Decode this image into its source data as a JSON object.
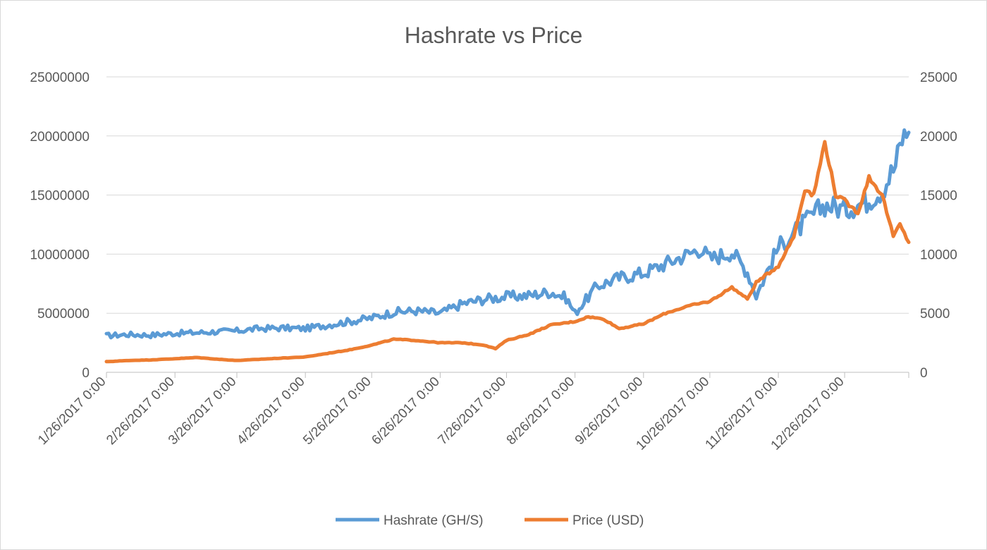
{
  "chart_data": {
    "type": "line",
    "title": "Hashrate vs Price",
    "xlabel": "",
    "ylabel": "",
    "y2label": "",
    "ylim": [
      0,
      25000000
    ],
    "y2lim": [
      0,
      25000
    ],
    "y_ticks": [
      "0",
      "5000000",
      "10000000",
      "15000000",
      "20000000",
      "25000000"
    ],
    "y2_ticks": [
      "0",
      "5000",
      "10000",
      "15000",
      "20000",
      "25000"
    ],
    "x_ticks": [
      "1/26/2017 0:00",
      "2/26/2017 0:00",
      "3/26/2017 0:00",
      "4/26/2017 0:00",
      "5/26/2017 0:00",
      "6/26/2017 0:00",
      "7/26/2017 0:00",
      "8/26/2017 0:00",
      "9/26/2017 0:00",
      "10/26/2017 0:00",
      "11/26/2017 0:00",
      "12/26/2017 0:00"
    ],
    "x_range": [
      "1/26/2017",
      "1/24/2018"
    ],
    "grid": true,
    "legend": "bottom",
    "series": [
      {
        "name": "Hashrate (GH/S)",
        "axis": "left",
        "color": "#5b9bd5",
        "x": [
          "1/26/2017",
          "2/5/2017",
          "2/15/2017",
          "2/26/2017",
          "3/8/2017",
          "3/18/2017",
          "3/26/2017",
          "4/5/2017",
          "4/15/2017",
          "4/26/2017",
          "5/6/2017",
          "5/16/2017",
          "5/26/2017",
          "6/5/2017",
          "6/15/2017",
          "6/26/2017",
          "7/6/2017",
          "7/16/2017",
          "7/26/2017",
          "8/5/2017",
          "8/15/2017",
          "8/22/2017",
          "8/26/2017",
          "9/5/2017",
          "9/15/2017",
          "9/26/2017",
          "10/6/2017",
          "10/16/2017",
          "10/22/2017",
          "10/26/2017",
          "11/5/2017",
          "11/12/2017",
          "11/16/2017",
          "11/26/2017",
          "12/3/2017",
          "12/10/2017",
          "12/17/2017",
          "12/26/2017",
          "1/5/2018",
          "1/12/2018",
          "1/18/2018",
          "1/21/2018",
          "1/24/2018"
        ],
        "values": [
          3100000,
          3200000,
          3150000,
          3300000,
          3350000,
          3450000,
          3500000,
          3700000,
          3750000,
          3700000,
          4000000,
          4300000,
          4600000,
          5100000,
          5200000,
          5000000,
          5800000,
          6200000,
          6400000,
          6500000,
          6800000,
          6300000,
          5000000,
          7300000,
          8000000,
          8400000,
          9200000,
          10000000,
          10500000,
          9600000,
          10200000,
          8500000,
          6500000,
          10600000,
          11800000,
          13000000,
          14200000,
          13800000,
          14500000,
          15500000,
          17500000,
          19800000,
          20300000
        ]
      },
      {
        "name": "Price (USD)",
        "axis": "right",
        "color": "#ed7d31",
        "x": [
          "1/26/2017",
          "2/5/2017",
          "2/15/2017",
          "2/26/2017",
          "3/8/2017",
          "3/18/2017",
          "3/26/2017",
          "4/5/2017",
          "4/15/2017",
          "4/26/2017",
          "5/6/2017",
          "5/16/2017",
          "5/26/2017",
          "6/5/2017",
          "6/15/2017",
          "6/26/2017",
          "7/6/2017",
          "7/16/2017",
          "7/21/2017",
          "7/26/2017",
          "8/5/2017",
          "8/15/2017",
          "8/26/2017",
          "9/1/2017",
          "9/8/2017",
          "9/15/2017",
          "9/26/2017",
          "10/6/2017",
          "10/16/2017",
          "10/26/2017",
          "11/5/2017",
          "11/12/2017",
          "11/16/2017",
          "11/26/2017",
          "12/3/2017",
          "12/8/2017",
          "12/12/2017",
          "12/17/2017",
          "12/22/2017",
          "12/26/2017",
          "1/1/2018",
          "1/6/2018",
          "1/12/2018",
          "1/17/2018",
          "1/20/2018",
          "1/24/2018"
        ],
        "values": [
          900,
          1000,
          1050,
          1150,
          1250,
          1100,
          1000,
          1100,
          1200,
          1300,
          1600,
          1900,
          2300,
          2800,
          2700,
          2500,
          2500,
          2300,
          2000,
          2700,
          3200,
          4000,
          4300,
          4700,
          4500,
          3700,
          4100,
          5000,
          5600,
          6000,
          7200,
          6200,
          7600,
          9000,
          11500,
          15500,
          15000,
          19500,
          15000,
          14500,
          13500,
          16500,
          15000,
          11500,
          12500,
          11000
        ]
      }
    ]
  }
}
